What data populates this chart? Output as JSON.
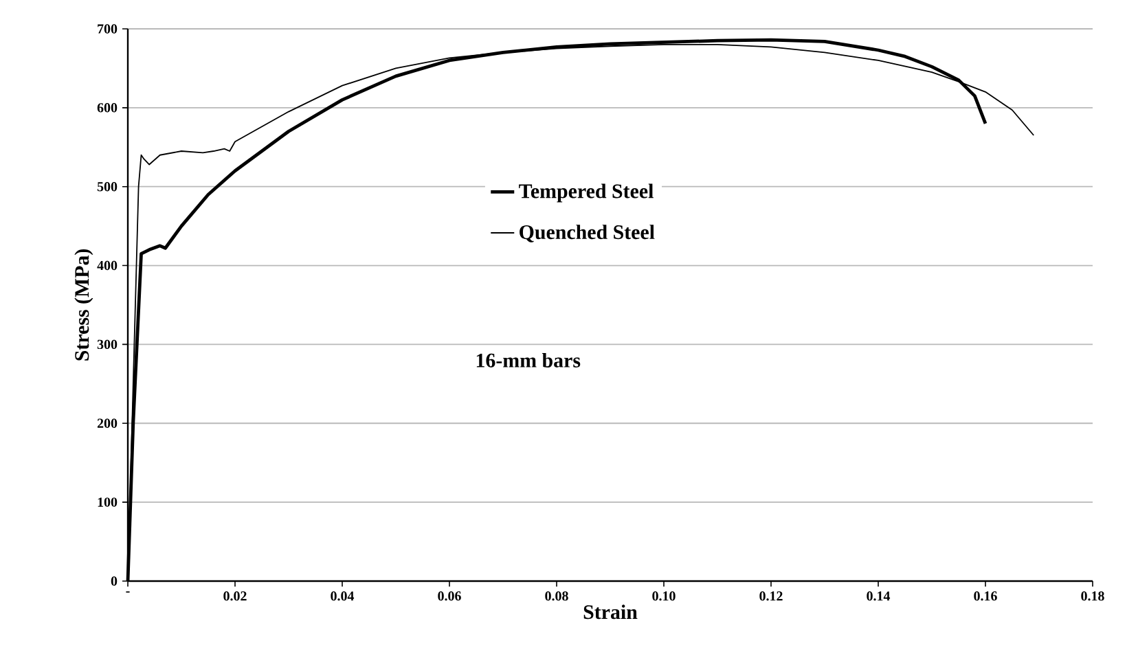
{
  "chart_data": {
    "type": "line",
    "xlabel": "Strain",
    "ylabel": "Stress (MPa)",
    "xlim": [
      0,
      0.18
    ],
    "ylim": [
      0,
      700
    ],
    "xticks": [
      {
        "value": 0,
        "label": "-"
      },
      0.02,
      0.04,
      0.06,
      0.08,
      {
        "value": 0.1,
        "label": "0.10"
      },
      0.12,
      0.14,
      0.16,
      0.18
    ],
    "yticks": [
      0,
      100,
      200,
      300,
      400,
      500,
      600,
      700
    ],
    "grid": "y",
    "legend": "center",
    "marker": "none",
    "line_style": "solid",
    "annotations": [
      "16-mm bars"
    ],
    "series": [
      {
        "name": "Tempered Steel",
        "color": "#000000",
        "x": [
          0,
          0.001,
          0.0025,
          0.004,
          0.006,
          0.007,
          0.01,
          0.015,
          0.02,
          0.03,
          0.04,
          0.05,
          0.06,
          0.07,
          0.08,
          0.09,
          0.1,
          0.11,
          0.12,
          0.13,
          0.14,
          0.145,
          0.15,
          0.155,
          0.158,
          0.16
        ],
        "values": [
          0,
          200,
          415,
          420,
          425,
          422,
          450,
          490,
          520,
          570,
          610,
          640,
          660,
          670,
          677,
          681,
          683,
          685,
          686,
          684,
          673,
          665,
          652,
          635,
          615,
          580
        ]
      },
      {
        "name": "Quenched Steel",
        "color": "#000000",
        "x": [
          0,
          0.001,
          0.002,
          0.0025,
          0.003,
          0.004,
          0.006,
          0.01,
          0.014,
          0.016,
          0.018,
          0.019,
          0.02,
          0.03,
          0.04,
          0.05,
          0.06,
          0.07,
          0.08,
          0.09,
          0.1,
          0.11,
          0.12,
          0.13,
          0.14,
          0.15,
          0.155,
          0.16,
          0.165,
          0.169
        ],
        "values": [
          0,
          250,
          500,
          540,
          535,
          528,
          540,
          545,
          543,
          545,
          548,
          545,
          557,
          595,
          628,
          650,
          663,
          670,
          675,
          678,
          680,
          680,
          677,
          670,
          660,
          645,
          633,
          620,
          597,
          565
        ]
      }
    ]
  }
}
